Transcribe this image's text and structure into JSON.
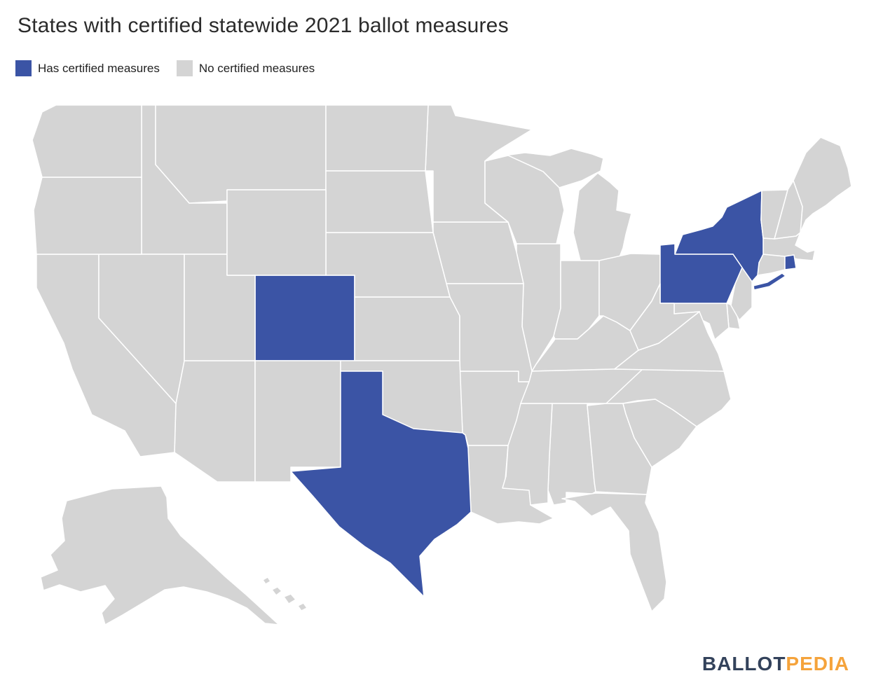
{
  "title": "States with certified statewide 2021 ballot measures",
  "legend": {
    "certified_label": "Has certified measures",
    "none_label": "No certified measures"
  },
  "colors": {
    "certified": "#3b54a5",
    "none": "#d4d4d4",
    "border": "#ffffff",
    "logo_blue": "#33425b",
    "logo_orange": "#f5a33b"
  },
  "logo": {
    "part1": "BALLOT",
    "part2": "PEDIA"
  },
  "map": {
    "certified_states": [
      "Colorado",
      "New York",
      "Pennsylvania",
      "Rhode Island",
      "Texas"
    ],
    "states": [
      {
        "code": "AL",
        "name": "Alabama",
        "certified": false
      },
      {
        "code": "AK",
        "name": "Alaska",
        "certified": false
      },
      {
        "code": "AZ",
        "name": "Arizona",
        "certified": false
      },
      {
        "code": "AR",
        "name": "Arkansas",
        "certified": false
      },
      {
        "code": "CA",
        "name": "California",
        "certified": false
      },
      {
        "code": "CO",
        "name": "Colorado",
        "certified": true
      },
      {
        "code": "CT",
        "name": "Connecticut",
        "certified": false
      },
      {
        "code": "DE",
        "name": "Delaware",
        "certified": false
      },
      {
        "code": "FL",
        "name": "Florida",
        "certified": false
      },
      {
        "code": "GA",
        "name": "Georgia",
        "certified": false
      },
      {
        "code": "HI",
        "name": "Hawaii",
        "certified": false
      },
      {
        "code": "ID",
        "name": "Idaho",
        "certified": false
      },
      {
        "code": "IL",
        "name": "Illinois",
        "certified": false
      },
      {
        "code": "IN",
        "name": "Indiana",
        "certified": false
      },
      {
        "code": "IA",
        "name": "Iowa",
        "certified": false
      },
      {
        "code": "KS",
        "name": "Kansas",
        "certified": false
      },
      {
        "code": "KY",
        "name": "Kentucky",
        "certified": false
      },
      {
        "code": "LA",
        "name": "Louisiana",
        "certified": false
      },
      {
        "code": "ME",
        "name": "Maine",
        "certified": false
      },
      {
        "code": "MD",
        "name": "Maryland",
        "certified": false
      },
      {
        "code": "MA",
        "name": "Massachusetts",
        "certified": false
      },
      {
        "code": "MI",
        "name": "Michigan",
        "certified": false
      },
      {
        "code": "MN",
        "name": "Minnesota",
        "certified": false
      },
      {
        "code": "MS",
        "name": "Mississippi",
        "certified": false
      },
      {
        "code": "MO",
        "name": "Missouri",
        "certified": false
      },
      {
        "code": "MT",
        "name": "Montana",
        "certified": false
      },
      {
        "code": "NE",
        "name": "Nebraska",
        "certified": false
      },
      {
        "code": "NV",
        "name": "Nevada",
        "certified": false
      },
      {
        "code": "NH",
        "name": "New Hampshire",
        "certified": false
      },
      {
        "code": "NJ",
        "name": "New Jersey",
        "certified": false
      },
      {
        "code": "NM",
        "name": "New Mexico",
        "certified": false
      },
      {
        "code": "NY",
        "name": "New York",
        "certified": true
      },
      {
        "code": "NC",
        "name": "North Carolina",
        "certified": false
      },
      {
        "code": "ND",
        "name": "North Dakota",
        "certified": false
      },
      {
        "code": "OH",
        "name": "Ohio",
        "certified": false
      },
      {
        "code": "OK",
        "name": "Oklahoma",
        "certified": false
      },
      {
        "code": "OR",
        "name": "Oregon",
        "certified": false
      },
      {
        "code": "PA",
        "name": "Pennsylvania",
        "certified": true
      },
      {
        "code": "RI",
        "name": "Rhode Island",
        "certified": true
      },
      {
        "code": "SC",
        "name": "South Carolina",
        "certified": false
      },
      {
        "code": "SD",
        "name": "South Dakota",
        "certified": false
      },
      {
        "code": "TN",
        "name": "Tennessee",
        "certified": false
      },
      {
        "code": "TX",
        "name": "Texas",
        "certified": true
      },
      {
        "code": "UT",
        "name": "Utah",
        "certified": false
      },
      {
        "code": "VT",
        "name": "Vermont",
        "certified": false
      },
      {
        "code": "VA",
        "name": "Virginia",
        "certified": false
      },
      {
        "code": "WA",
        "name": "Washington",
        "certified": false
      },
      {
        "code": "WV",
        "name": "West Virginia",
        "certified": false
      },
      {
        "code": "WI",
        "name": "Wisconsin",
        "certified": false
      },
      {
        "code": "WY",
        "name": "Wyoming",
        "certified": false
      }
    ]
  }
}
